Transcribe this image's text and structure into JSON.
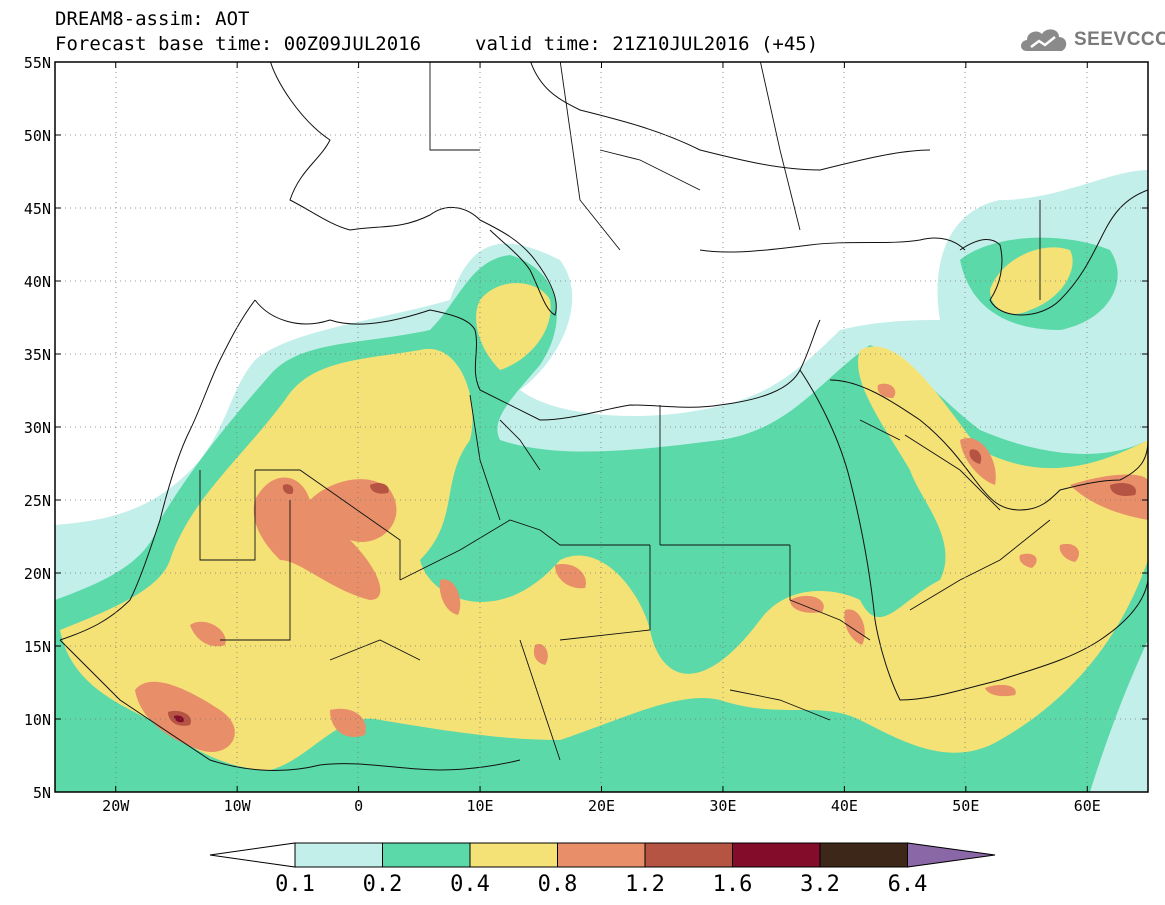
{
  "header": {
    "title": "DREAM8-assim: AOT",
    "base_time": "Forecast base time: 00Z09JUL2016",
    "valid_time": "valid time: 21Z10JUL2016 (+45)"
  },
  "logo": {
    "text": "SEEVCCC",
    "icon": "cloud-icon"
  },
  "map": {
    "lon_range": [
      -25,
      65
    ],
    "lat_range": [
      5,
      55
    ],
    "lat_ticks": [
      "55N",
      "50N",
      "45N",
      "40N",
      "35N",
      "30N",
      "25N",
      "20N",
      "15N",
      "10N",
      "5N"
    ],
    "lon_ticks": [
      "20W",
      "10W",
      "0",
      "10E",
      "20E",
      "30E",
      "40E",
      "50E",
      "60E"
    ]
  },
  "colorbar": {
    "levels": [
      "0.1",
      "0.2",
      "0.4",
      "0.8",
      "1.2",
      "1.6",
      "3.2",
      "6.4"
    ],
    "colors": [
      "#c3efea",
      "#5bd9a9",
      "#f5e277",
      "#e88f6a",
      "#b55442",
      "#820c2a",
      "#3d2719"
    ],
    "under_color": "#ffffff",
    "over_color": "#8a67a7"
  },
  "legend_colors": {
    "land": "#ffffff",
    "borders": "#111111"
  }
}
